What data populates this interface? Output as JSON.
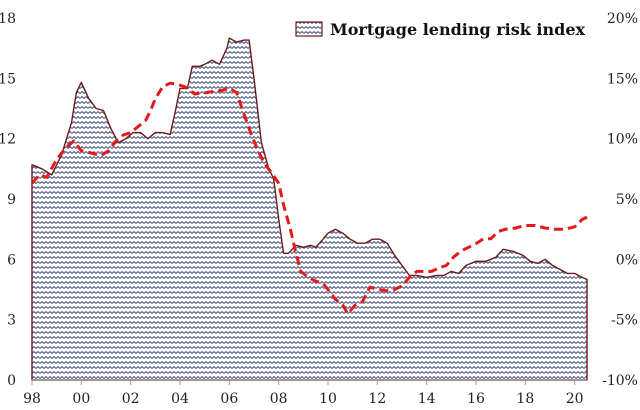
{
  "chart_data": {
    "type": "area",
    "title": "",
    "xlabel": "",
    "ylabel": "",
    "x_range": [
      1998,
      2020.5
    ],
    "x_ticks": [
      {
        "value": 1998,
        "label": "98"
      },
      {
        "value": 2000,
        "label": "00"
      },
      {
        "value": 2002,
        "label": "02"
      },
      {
        "value": 2004,
        "label": "04"
      },
      {
        "value": 2006,
        "label": "06"
      },
      {
        "value": 2008,
        "label": "08"
      },
      {
        "value": 2010,
        "label": "10"
      },
      {
        "value": 2012,
        "label": "12"
      },
      {
        "value": 2014,
        "label": "14"
      },
      {
        "value": 2016,
        "label": "16"
      },
      {
        "value": 2018,
        "label": "18"
      },
      {
        "value": 2020,
        "label": "20"
      }
    ],
    "y_left": {
      "range": [
        0,
        18
      ],
      "ticks": [
        {
          "value": 0,
          "label": "0"
        },
        {
          "value": 3,
          "label": "3"
        },
        {
          "value": 6,
          "label": "6"
        },
        {
          "value": 9,
          "label": "9"
        },
        {
          "value": 12,
          "label": "12"
        },
        {
          "value": 15,
          "label": "15"
        },
        {
          "value": 18,
          "label": "18"
        }
      ]
    },
    "y_right": {
      "range": [
        -10,
        20
      ],
      "ticks": [
        {
          "value": -10,
          "label": "-10%"
        },
        {
          "value": -5,
          "label": "-5%"
        },
        {
          "value": 0,
          "label": "0%"
        },
        {
          "value": 5,
          "label": "5%"
        },
        {
          "value": 10,
          "label": "10%"
        },
        {
          "value": 15,
          "label": "15%"
        },
        {
          "value": 20,
          "label": "20%"
        }
      ]
    },
    "grid": false,
    "legend": {
      "placement": "top-right"
    },
    "series": [
      {
        "name": "Mortgage lending risk index",
        "kind": "area",
        "axis": "left",
        "color": "#2c3e6b",
        "outline": "#6b1a1a",
        "points": [
          [
            1998.0,
            10.7
          ],
          [
            1998.4,
            10.5
          ],
          [
            1998.8,
            10.2
          ],
          [
            1999.2,
            11.2
          ],
          [
            1999.6,
            12.8
          ],
          [
            1999.8,
            14.3
          ],
          [
            2000.0,
            14.8
          ],
          [
            2000.3,
            14.0
          ],
          [
            2000.6,
            13.5
          ],
          [
            2000.9,
            13.4
          ],
          [
            2001.2,
            12.5
          ],
          [
            2001.5,
            11.8
          ],
          [
            2001.8,
            12.0
          ],
          [
            2002.1,
            12.3
          ],
          [
            2002.4,
            12.3
          ],
          [
            2002.7,
            12.0
          ],
          [
            2003.0,
            12.3
          ],
          [
            2003.3,
            12.3
          ],
          [
            2003.6,
            12.2
          ],
          [
            2003.8,
            13.3
          ],
          [
            2004.0,
            14.5
          ],
          [
            2004.3,
            14.5
          ],
          [
            2004.5,
            15.6
          ],
          [
            2004.8,
            15.6
          ],
          [
            2005.0,
            15.7
          ],
          [
            2005.3,
            15.9
          ],
          [
            2005.6,
            15.7
          ],
          [
            2005.9,
            16.5
          ],
          [
            2006.0,
            17.0
          ],
          [
            2006.3,
            16.8
          ],
          [
            2006.6,
            16.9
          ],
          [
            2006.8,
            16.9
          ],
          [
            2007.0,
            15.0
          ],
          [
            2007.3,
            11.8
          ],
          [
            2007.6,
            10.5
          ],
          [
            2007.8,
            10.0
          ],
          [
            2008.0,
            8.0
          ],
          [
            2008.2,
            6.3
          ],
          [
            2008.4,
            6.3
          ],
          [
            2008.7,
            6.7
          ],
          [
            2009.0,
            6.6
          ],
          [
            2009.3,
            6.7
          ],
          [
            2009.5,
            6.6
          ],
          [
            2009.8,
            7.0
          ],
          [
            2010.0,
            7.3
          ],
          [
            2010.3,
            7.5
          ],
          [
            2010.6,
            7.3
          ],
          [
            2010.9,
            7.0
          ],
          [
            2011.2,
            6.8
          ],
          [
            2011.5,
            6.8
          ],
          [
            2011.8,
            7.0
          ],
          [
            2012.1,
            7.0
          ],
          [
            2012.4,
            6.8
          ],
          [
            2012.7,
            6.2
          ],
          [
            2013.0,
            5.7
          ],
          [
            2013.3,
            5.2
          ],
          [
            2013.6,
            5.2
          ],
          [
            2014.0,
            5.1
          ],
          [
            2014.4,
            5.2
          ],
          [
            2014.7,
            5.2
          ],
          [
            2015.0,
            5.4
          ],
          [
            2015.3,
            5.3
          ],
          [
            2015.6,
            5.7
          ],
          [
            2016.0,
            5.9
          ],
          [
            2016.4,
            5.9
          ],
          [
            2016.8,
            6.1
          ],
          [
            2017.1,
            6.5
          ],
          [
            2017.5,
            6.4
          ],
          [
            2017.9,
            6.2
          ],
          [
            2018.2,
            5.9
          ],
          [
            2018.5,
            5.8
          ],
          [
            2018.8,
            6.0
          ],
          [
            2019.1,
            5.7
          ],
          [
            2019.4,
            5.5
          ],
          [
            2019.7,
            5.3
          ],
          [
            2020.0,
            5.3
          ],
          [
            2020.3,
            5.1
          ],
          [
            2020.5,
            5.0
          ]
        ]
      },
      {
        "name": "",
        "kind": "line",
        "axis": "right",
        "style": "dashed",
        "color": "#e31a1c",
        "points": [
          [
            1998.0,
            6.3
          ],
          [
            1998.3,
            7.0
          ],
          [
            1998.6,
            6.8
          ],
          [
            1999.0,
            8.3
          ],
          [
            1999.4,
            9.3
          ],
          [
            1999.7,
            9.8
          ],
          [
            2000.0,
            9.0
          ],
          [
            2000.4,
            8.8
          ],
          [
            2000.8,
            8.6
          ],
          [
            2001.1,
            9.0
          ],
          [
            2001.4,
            9.8
          ],
          [
            2001.7,
            10.3
          ],
          [
            2002.0,
            10.5
          ],
          [
            2002.3,
            11.0
          ],
          [
            2002.6,
            11.5
          ],
          [
            2002.8,
            12.3
          ],
          [
            2003.0,
            13.3
          ],
          [
            2003.3,
            14.3
          ],
          [
            2003.6,
            14.6
          ],
          [
            2003.9,
            14.5
          ],
          [
            2004.2,
            14.3
          ],
          [
            2004.6,
            13.7
          ],
          [
            2005.0,
            13.8
          ],
          [
            2005.3,
            13.9
          ],
          [
            2005.7,
            14.0
          ],
          [
            2006.0,
            14.2
          ],
          [
            2006.3,
            13.8
          ],
          [
            2006.6,
            12.0
          ],
          [
            2006.9,
            10.3
          ],
          [
            2007.1,
            9.3
          ],
          [
            2007.4,
            8.0
          ],
          [
            2007.7,
            7.2
          ],
          [
            2008.0,
            6.3
          ],
          [
            2008.2,
            4.5
          ],
          [
            2008.5,
            2.3
          ],
          [
            2008.7,
            0.5
          ],
          [
            2008.9,
            -1.0
          ],
          [
            2009.2,
            -1.5
          ],
          [
            2009.5,
            -1.8
          ],
          [
            2009.8,
            -2.0
          ],
          [
            2010.0,
            -2.5
          ],
          [
            2010.3,
            -3.3
          ],
          [
            2010.6,
            -3.8
          ],
          [
            2010.8,
            -4.5
          ],
          [
            2011.1,
            -3.8
          ],
          [
            2011.4,
            -3.5
          ],
          [
            2011.7,
            -2.3
          ],
          [
            2012.0,
            -2.5
          ],
          [
            2012.4,
            -2.6
          ],
          [
            2012.7,
            -2.5
          ],
          [
            2013.0,
            -2.2
          ],
          [
            2013.3,
            -1.5
          ],
          [
            2013.6,
            -1.0
          ],
          [
            2013.9,
            -1.0
          ],
          [
            2014.2,
            -1.0
          ],
          [
            2014.5,
            -0.7
          ],
          [
            2014.8,
            -0.5
          ],
          [
            2015.1,
            0.2
          ],
          [
            2015.4,
            0.7
          ],
          [
            2015.7,
            1.0
          ],
          [
            2016.0,
            1.3
          ],
          [
            2016.3,
            1.7
          ],
          [
            2016.6,
            1.7
          ],
          [
            2016.9,
            2.3
          ],
          [
            2017.2,
            2.5
          ],
          [
            2017.6,
            2.6
          ],
          [
            2018.0,
            2.8
          ],
          [
            2018.4,
            2.8
          ],
          [
            2018.8,
            2.6
          ],
          [
            2019.2,
            2.5
          ],
          [
            2019.6,
            2.5
          ],
          [
            2020.0,
            2.7
          ],
          [
            2020.3,
            3.3
          ],
          [
            2020.5,
            3.5
          ]
        ]
      }
    ]
  }
}
